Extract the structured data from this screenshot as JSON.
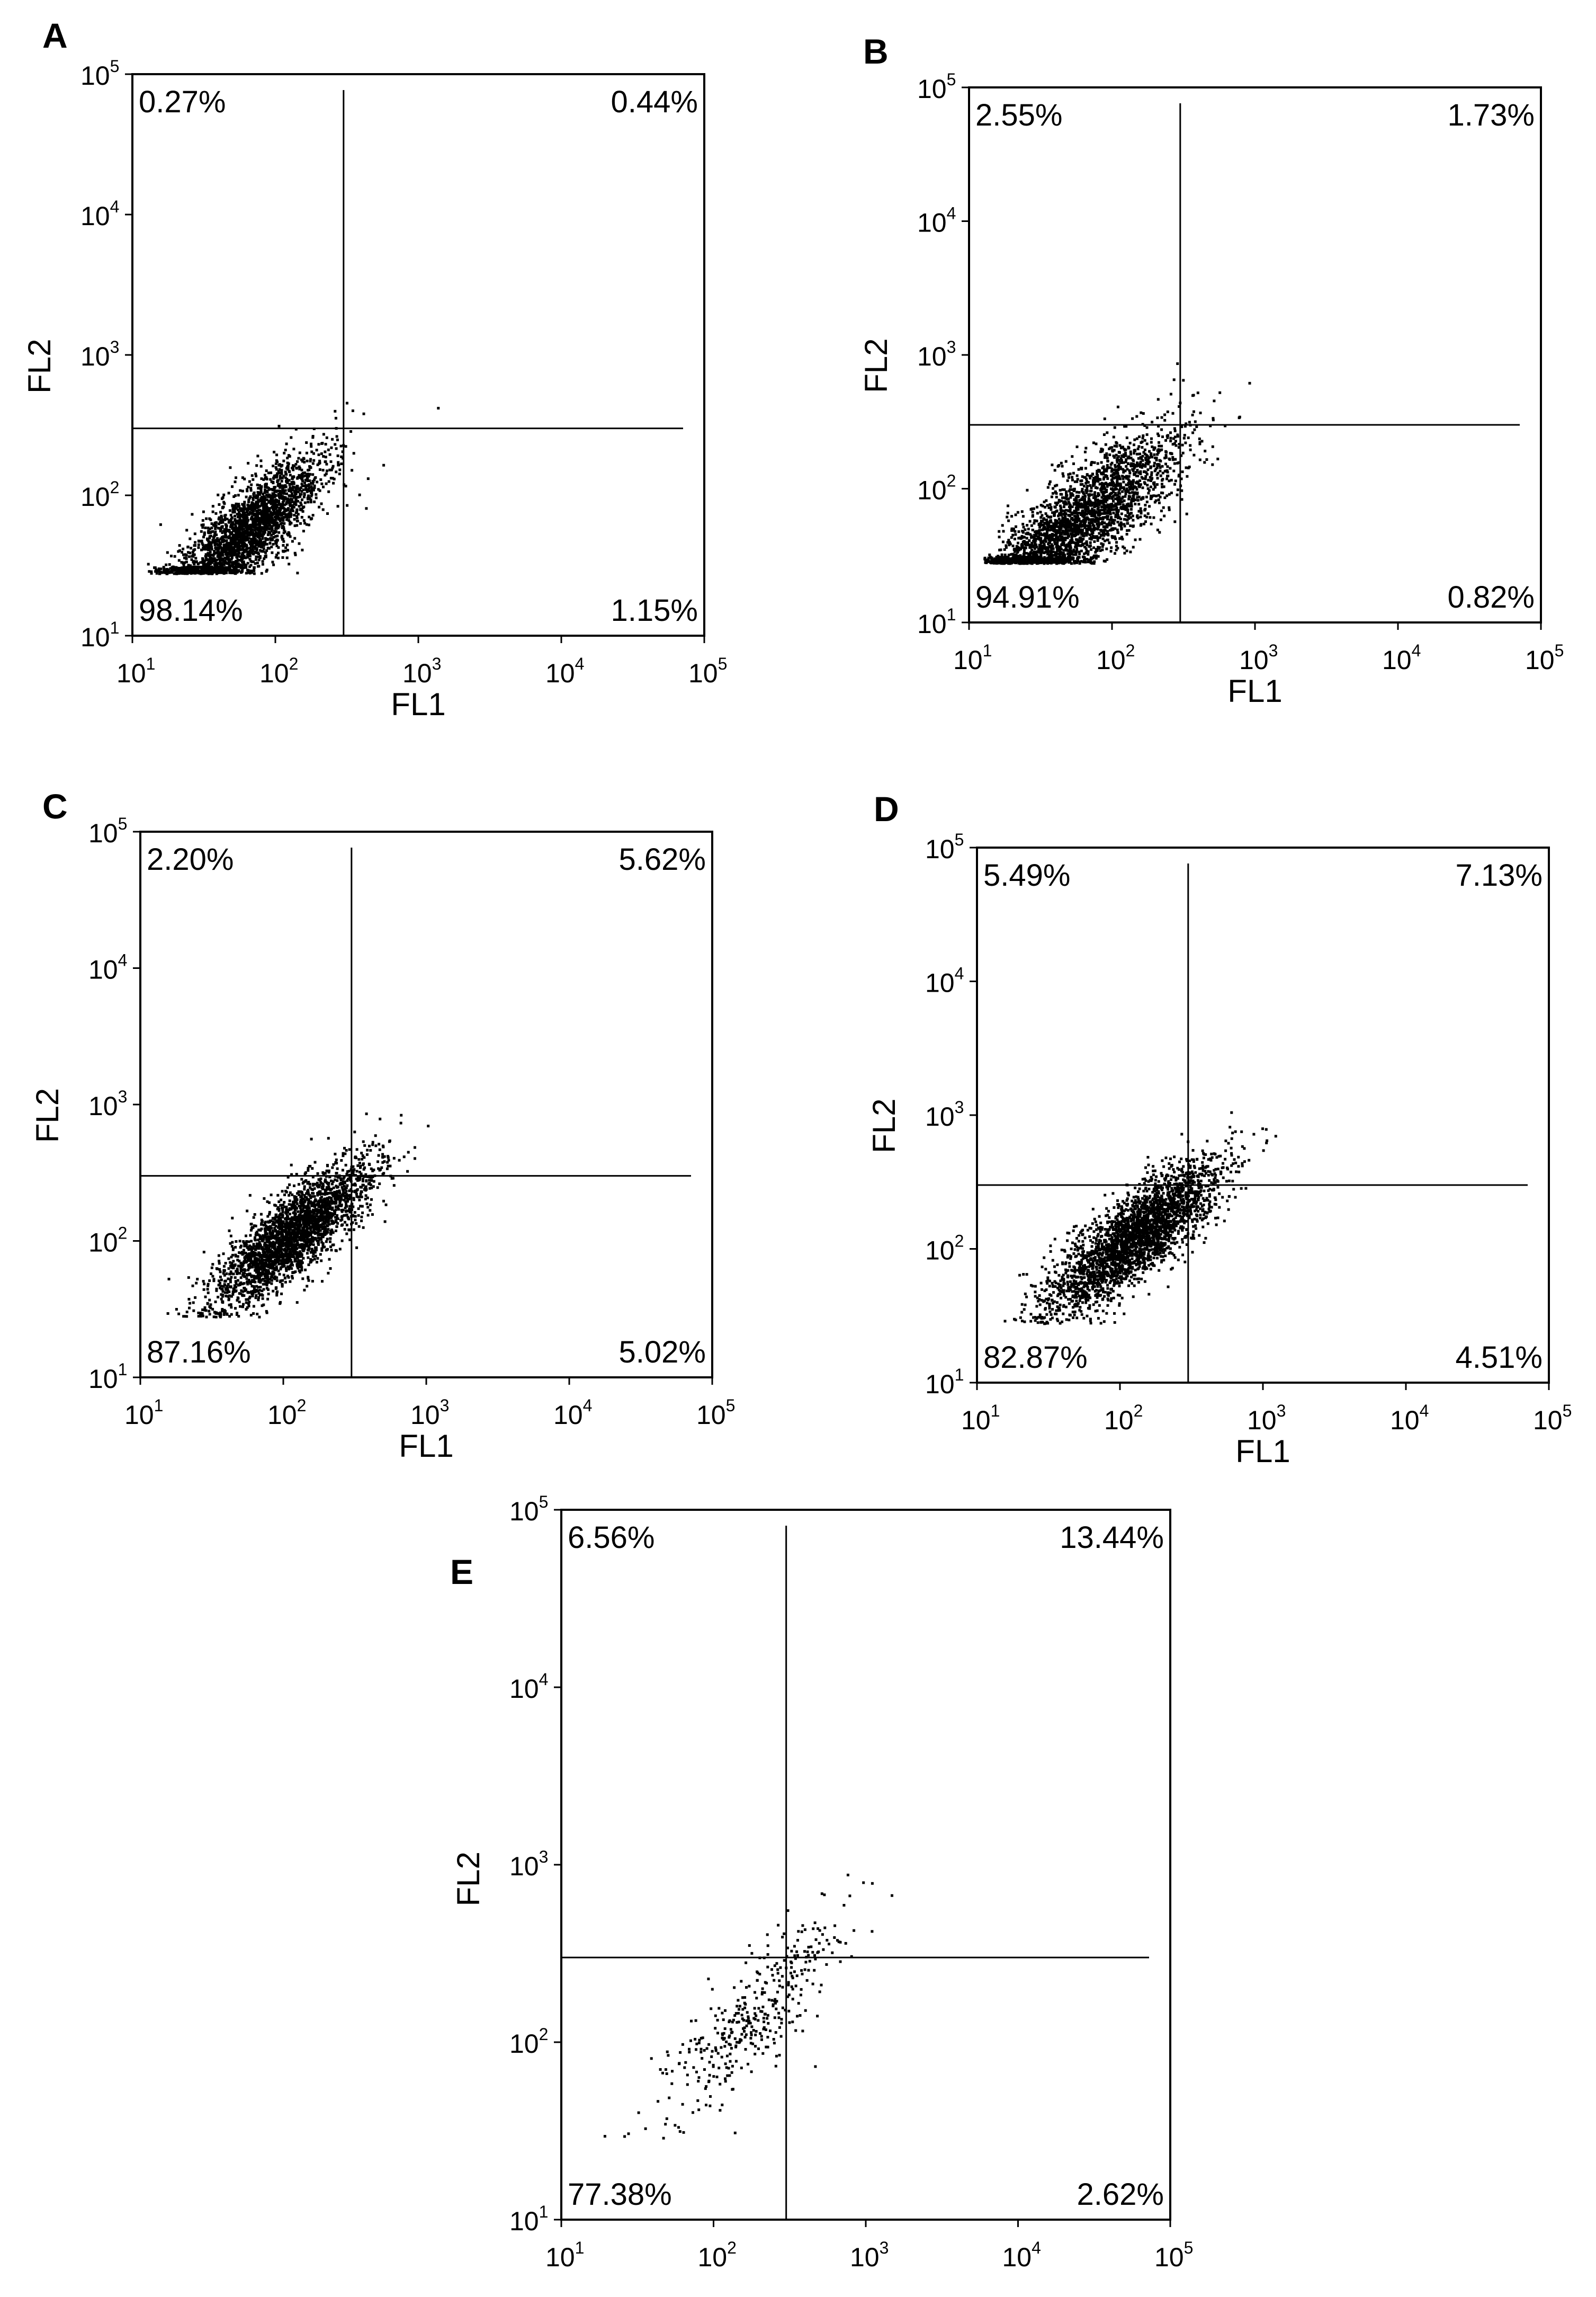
{
  "chart_data": [
    {
      "panel": "A",
      "type": "scatter",
      "xlabel": "FL1",
      "ylabel": "FL2",
      "x_scale": "log",
      "y_scale": "log",
      "xlim": [
        10,
        100000
      ],
      "ylim": [
        10,
        100000
      ],
      "x_ticks": [
        10,
        100,
        1000,
        10000,
        100000
      ],
      "y_ticks": [
        10,
        100,
        1000,
        10000,
        100000
      ],
      "x_tick_labels": [
        {
          "base": "10",
          "exp": "1"
        },
        {
          "base": "10",
          "exp": "2"
        },
        {
          "base": "10",
          "exp": "3"
        },
        {
          "base": "10",
          "exp": "4"
        },
        {
          "base": "10",
          "exp": "5"
        }
      ],
      "y_tick_labels": [
        {
          "base": "10",
          "exp": "1"
        },
        {
          "base": "10",
          "exp": "2"
        },
        {
          "base": "10",
          "exp": "3"
        },
        {
          "base": "10",
          "exp": "4"
        },
        {
          "base": "10",
          "exp": "5"
        }
      ],
      "gate_x": 300,
      "gate_y": 300,
      "quadrants": {
        "upper_left": "0.27%",
        "upper_right": "0.44%",
        "lower_left": "98.14%",
        "lower_right": "1.15%"
      },
      "cluster": {
        "x_log10_center": 1.8,
        "y_log10_center": 1.75,
        "spread": 0.28,
        "n_points": 2600
      },
      "grid": false
    },
    {
      "panel": "B",
      "type": "scatter",
      "xlabel": "FL1",
      "ylabel": "FL2",
      "x_scale": "log",
      "y_scale": "log",
      "xlim": [
        10,
        100000
      ],
      "ylim": [
        10,
        100000
      ],
      "x_ticks": [
        10,
        100,
        1000,
        10000,
        100000
      ],
      "y_ticks": [
        10,
        100,
        1000,
        10000,
        100000
      ],
      "x_tick_labels": [
        {
          "base": "10",
          "exp": "1"
        },
        {
          "base": "10",
          "exp": "2"
        },
        {
          "base": "10",
          "exp": "3"
        },
        {
          "base": "10",
          "exp": "4"
        },
        {
          "base": "10",
          "exp": "5"
        }
      ],
      "y_tick_labels": [
        {
          "base": "10",
          "exp": "1"
        },
        {
          "base": "10",
          "exp": "2"
        },
        {
          "base": "10",
          "exp": "3"
        },
        {
          "base": "10",
          "exp": "4"
        },
        {
          "base": "10",
          "exp": "5"
        }
      ],
      "gate_x": 300,
      "gate_y": 300,
      "quadrants": {
        "upper_left": "2.55%",
        "upper_right": "1.73%",
        "lower_left": "94.91%",
        "lower_right": "0.82%"
      },
      "cluster": {
        "x_log10_center": 1.75,
        "y_log10_center": 1.75,
        "spread": 0.36,
        "n_points": 2800
      },
      "grid": false
    },
    {
      "panel": "C",
      "type": "scatter",
      "xlabel": "FL1",
      "ylabel": "FL2",
      "x_scale": "log",
      "y_scale": "log",
      "xlim": [
        10,
        100000
      ],
      "ylim": [
        10,
        100000
      ],
      "x_ticks": [
        10,
        100,
        1000,
        10000,
        100000
      ],
      "y_ticks": [
        10,
        100,
        1000,
        10000,
        100000
      ],
      "x_tick_labels": [
        {
          "base": "10",
          "exp": "1"
        },
        {
          "base": "10",
          "exp": "2"
        },
        {
          "base": "10",
          "exp": "3"
        },
        {
          "base": "10",
          "exp": "4"
        },
        {
          "base": "10",
          "exp": "5"
        }
      ],
      "y_tick_labels": [
        {
          "base": "10",
          "exp": "1"
        },
        {
          "base": "10",
          "exp": "2"
        },
        {
          "base": "10",
          "exp": "3"
        },
        {
          "base": "10",
          "exp": "4"
        },
        {
          "base": "10",
          "exp": "5"
        }
      ],
      "gate_x": 300,
      "gate_y": 300,
      "quadrants": {
        "upper_left": "2.20%",
        "upper_right": "5.62%",
        "lower_left": "87.16%",
        "lower_right": "5.02%"
      },
      "cluster": {
        "x_log10_center": 2.05,
        "y_log10_center": 2.05,
        "spread": 0.28,
        "n_points": 2600
      },
      "grid": false
    },
    {
      "panel": "D",
      "type": "scatter",
      "xlabel": "FL1",
      "ylabel": "FL2",
      "x_scale": "log",
      "y_scale": "log",
      "xlim": [
        10,
        100000
      ],
      "ylim": [
        10,
        100000
      ],
      "x_ticks": [
        10,
        100,
        1000,
        10000,
        100000
      ],
      "y_ticks": [
        10,
        100,
        1000,
        10000,
        100000
      ],
      "x_tick_labels": [
        {
          "base": "10",
          "exp": "1"
        },
        {
          "base": "10",
          "exp": "2"
        },
        {
          "base": "10",
          "exp": "3"
        },
        {
          "base": "10",
          "exp": "4"
        },
        {
          "base": "10",
          "exp": "5"
        }
      ],
      "y_tick_labels": [
        {
          "base": "10",
          "exp": "1"
        },
        {
          "base": "10",
          "exp": "2"
        },
        {
          "base": "10",
          "exp": "3"
        },
        {
          "base": "10",
          "exp": "4"
        },
        {
          "base": "10",
          "exp": "5"
        }
      ],
      "gate_x": 300,
      "gate_y": 300,
      "quadrants": {
        "upper_left": "5.49%",
        "upper_right": "7.13%",
        "lower_left": "82.87%",
        "lower_right": "4.51%"
      },
      "cluster": {
        "x_log10_center": 2.1,
        "y_log10_center": 2.1,
        "spread": 0.3,
        "n_points": 2800
      },
      "grid": false
    },
    {
      "panel": "E",
      "type": "scatter",
      "xlabel": "",
      "ylabel": "FL2",
      "x_scale": "log",
      "y_scale": "log",
      "xlim": [
        10,
        100000
      ],
      "ylim": [
        10,
        100000
      ],
      "x_ticks": [
        10,
        100,
        1000,
        10000,
        100000
      ],
      "y_ticks": [
        10,
        100,
        1000,
        10000,
        100000
      ],
      "x_tick_labels": [
        {
          "base": "10",
          "exp": "1"
        },
        {
          "base": "10",
          "exp": "2"
        },
        {
          "base": "10",
          "exp": "3"
        },
        {
          "base": "10",
          "exp": "4"
        },
        {
          "base": "10",
          "exp": "5"
        }
      ],
      "y_tick_labels": [
        {
          "base": "10",
          "exp": "1"
        },
        {
          "base": "10",
          "exp": "2"
        },
        {
          "base": "10",
          "exp": "3"
        },
        {
          "base": "10",
          "exp": "4"
        },
        {
          "base": "10",
          "exp": "5"
        }
      ],
      "gate_x": 300,
      "gate_y": 300,
      "quadrants": {
        "upper_left": "6.56%",
        "upper_right": "13.44%",
        "lower_left": "77.38%",
        "lower_right": "2.62%"
      },
      "cluster": {
        "x_log10_center": 2.25,
        "y_log10_center": 2.15,
        "spread": 0.3,
        "n_points": 380
      },
      "grid": false
    }
  ]
}
